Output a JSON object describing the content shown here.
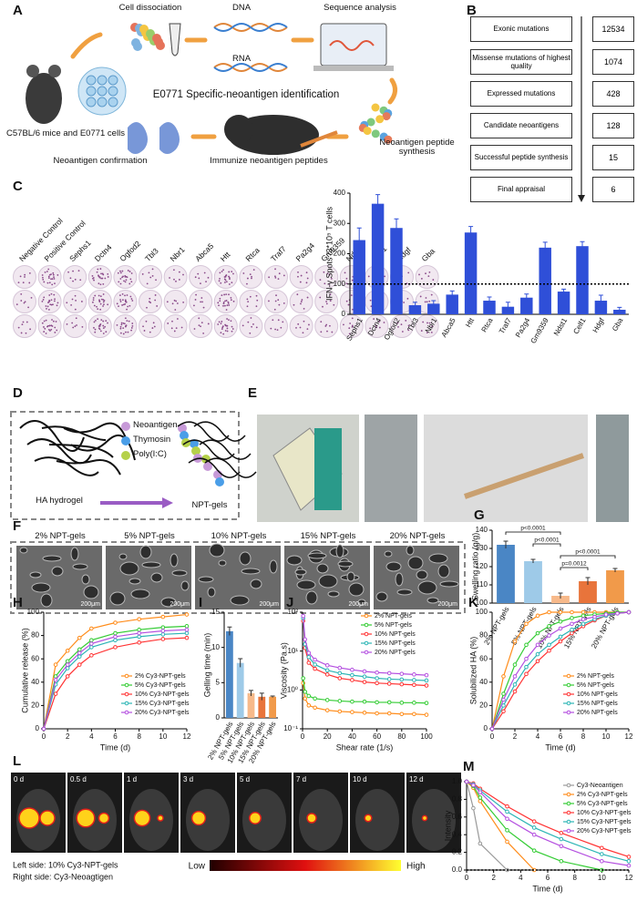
{
  "panel_letters": [
    "A",
    "B",
    "C",
    "D",
    "E",
    "F",
    "G",
    "H",
    "I",
    "J",
    "K",
    "L",
    "M"
  ],
  "panel_a": {
    "labels": [
      "Cell dissociation",
      "DNA",
      "RNA",
      "Sequence analysis",
      "E0771 Specific-neoantigen identification",
      "C57BL/6 mice and E0771 cells",
      "Neoantigen peptide synthesis",
      "Immunize neoantigen peptides",
      "Neoantigen confirmation"
    ]
  },
  "panel_b": {
    "steps": [
      {
        "label": "Exonic mutations",
        "count": 12534
      },
      {
        "label": "Missense mutations of highest quality",
        "count": 1074
      },
      {
        "label": "Expressed mutations",
        "count": 428
      },
      {
        "label": "Candidate neoantigens",
        "count": 128
      },
      {
        "label": "Successful peptide synthesis",
        "count": 15
      },
      {
        "label": "Final appraisal",
        "count": 6
      }
    ]
  },
  "panel_c": {
    "well_labels": [
      "Negative Control",
      "Positive Control",
      "Sephs1",
      "Dctn4",
      "Ogfod2",
      "Tbl3",
      "Nbr1",
      "Abca5",
      "Htt",
      "Rtca",
      "Traf7",
      "Pa2g4",
      "Gm9359",
      "Ndst1",
      "Celf1",
      "Hdgf",
      "Gba"
    ]
  },
  "panel_d": {
    "legend": [
      "Neoantigen",
      "Thymosin",
      "Poly(I:C)"
    ],
    "left": "HA hydrogel",
    "right": "NPT-gels"
  },
  "panel_f": {
    "labels": [
      "2% NPT-gels",
      "5% NPT-gels",
      "10% NPT-gels",
      "15% NPT-gels",
      "20% NPT-gels"
    ],
    "scale": "200μm"
  },
  "panel_l": {
    "times": [
      "0 d",
      "0.5 d",
      "1 d",
      "3 d",
      "5 d",
      "7 d",
      "10 d",
      "12 d"
    ],
    "notes": [
      "Left side: 10% Cy3-NPT-gels",
      "Right side: Cy3-Neoagtigen"
    ],
    "low": "Low",
    "high": "High"
  },
  "chart_data": [
    {
      "type": "bar",
      "ylabel": "IFN-γ Spots /3*10⁵ T cells",
      "categories": [
        "Sephs1",
        "Dctn4",
        "Ogfod2",
        "Tbl3",
        "Nbr1",
        "Abca5",
        "Htt",
        "Rtca",
        "Traf7",
        "Pa2g4",
        "Gm9359",
        "Ndst1",
        "Celf1",
        "Hdgf",
        "Gba"
      ],
      "values": [
        245,
        365,
        285,
        30,
        35,
        65,
        270,
        45,
        25,
        55,
        220,
        75,
        225,
        45,
        15
      ],
      "errors": [
        40,
        30,
        30,
        10,
        10,
        12,
        20,
        12,
        15,
        12,
        18,
        8,
        15,
        18,
        8
      ],
      "color": "#2f4fd8",
      "ylim": [
        0,
        400
      ],
      "yticks": [
        0,
        100,
        200,
        300,
        400
      ],
      "ref_line": 100
    },
    {
      "type": "bar",
      "ylabel": "Swelling ratio (g/g)",
      "categories": [
        "2% NPT-gels",
        "5% NPT-gels",
        "10% NPT-gels",
        "15% NPT-gels",
        "20% NPT-gels"
      ],
      "values": [
        132,
        123,
        104,
        112,
        118
      ],
      "errors": [
        2,
        1,
        1.5,
        2,
        1
      ],
      "colors": [
        "#4a86c5",
        "#9ecae8",
        "#f7b98a",
        "#e8743b",
        "#f19a4a"
      ],
      "ylim": [
        100,
        140
      ],
      "yticks": [
        100,
        110,
        120,
        130,
        140
      ],
      "annotations": [
        {
          "text": "p<0.0001",
          "between": [
            "2% NPT-gels",
            "10% NPT-gels"
          ]
        },
        {
          "text": "p<0.0001",
          "between": [
            "5% NPT-gels",
            "10% NPT-gels"
          ]
        },
        {
          "text": "p<0.0001",
          "between": [
            "10% NPT-gels",
            "20% NPT-gels"
          ]
        },
        {
          "text": "p=0.0012",
          "between": [
            "10% NPT-gels",
            "15% NPT-gels"
          ]
        }
      ]
    },
    {
      "type": "line",
      "xlabel": "Time (d)",
      "ylabel": "Cumulative release (%)",
      "x": [
        0,
        1,
        2,
        3,
        4,
        6,
        8,
        10,
        12
      ],
      "xlim": [
        0,
        12
      ],
      "xticks": [
        0,
        2,
        4,
        6,
        8,
        10,
        12
      ],
      "ylim": [
        0,
        100
      ],
      "yticks": [
        0,
        20,
        40,
        60,
        80,
        100
      ],
      "legend": "lower right",
      "series": [
        {
          "name": "2% Cy3-NPT-gels",
          "color": "#ff8c1a",
          "values": [
            0,
            55,
            67,
            78,
            86,
            91,
            94,
            96,
            98
          ]
        },
        {
          "name": "5% Cy3-NPT-gels",
          "color": "#33cc33",
          "values": [
            0,
            45,
            58,
            68,
            76,
            82,
            85,
            87,
            88
          ]
        },
        {
          "name": "10% Cy3-NPT-gels",
          "color": "#ff3333",
          "values": [
            0,
            30,
            45,
            55,
            63,
            70,
            74,
            77,
            78
          ]
        },
        {
          "name": "15% Cy3-NPT-gels",
          "color": "#2bb5b5",
          "values": [
            0,
            38,
            52,
            62,
            70,
            76,
            79,
            81,
            82
          ]
        },
        {
          "name": "20% Cy3-NPT-gels",
          "color": "#b44fe0",
          "values": [
            0,
            42,
            55,
            65,
            73,
            79,
            82,
            84,
            85
          ]
        }
      ]
    },
    {
      "type": "bar",
      "ylabel": "Gelling time (min)",
      "categories": [
        "2% NPT-gels",
        "5% NPT-gels",
        "10% NPT-gels",
        "15% NPT-gels",
        "20% NPT-gels"
      ],
      "values": [
        12.3,
        7.8,
        3.5,
        3.0,
        3.0
      ],
      "errors": [
        0.6,
        0.6,
        0.4,
        0.5,
        0.1
      ],
      "colors": [
        "#4a86c5",
        "#9ecae8",
        "#f7b98a",
        "#e8743b",
        "#f19a4a"
      ],
      "ylim": [
        0,
        15
      ],
      "yticks": [
        0,
        5,
        10,
        15
      ]
    },
    {
      "type": "line",
      "xlabel": "Shear rate (1/s)",
      "ylabel": "Viscosity (Pa.s)",
      "log_y": true,
      "x": [
        0.5,
        2,
        5,
        10,
        20,
        30,
        40,
        50,
        60,
        70,
        80,
        90,
        100
      ],
      "xlim": [
        0,
        100
      ],
      "xticks": [
        0,
        20,
        40,
        60,
        80,
        100
      ],
      "ylim": [
        0.1,
        100
      ],
      "yticks": [
        {
          "value": 0.1,
          "label": "10⁻¹"
        },
        {
          "value": 1,
          "label": "10⁰"
        },
        {
          "value": 10,
          "label": "10¹"
        },
        {
          "value": 100,
          "label": "10²"
        }
      ],
      "legend": "upper right",
      "series": [
        {
          "name": "2% NPT-gels",
          "color": "#ff8c1a",
          "values": [
            1.5,
            0.6,
            0.4,
            0.35,
            0.3,
            0.28,
            0.27,
            0.26,
            0.25,
            0.25,
            0.24,
            0.24,
            0.23
          ]
        },
        {
          "name": "5% NPT-gels",
          "color": "#33cc33",
          "values": [
            2,
            0.9,
            0.7,
            0.6,
            0.55,
            0.52,
            0.5,
            0.5,
            0.48,
            0.48,
            0.47,
            0.47,
            0.46
          ]
        },
        {
          "name": "10% NPT-gels",
          "color": "#ff3333",
          "values": [
            60,
            12,
            5,
            3.5,
            2.5,
            2,
            1.8,
            1.6,
            1.5,
            1.45,
            1.4,
            1.35,
            1.3
          ]
        },
        {
          "name": "15% NPT-gels",
          "color": "#2bb5b5",
          "values": [
            70,
            15,
            7,
            4.5,
            3.2,
            2.7,
            2.4,
            2.2,
            2.0,
            1.9,
            1.85,
            1.8,
            1.75
          ]
        },
        {
          "name": "20% NPT-gels",
          "color": "#b44fe0",
          "values": [
            80,
            20,
            9,
            6,
            4.3,
            3.7,
            3.3,
            3.0,
            2.8,
            2.7,
            2.6,
            2.5,
            2.4
          ]
        }
      ]
    },
    {
      "type": "line",
      "xlabel": "Time (d)",
      "ylabel": "Solubilized HA (%)",
      "x": [
        0,
        1,
        2,
        3,
        4,
        5,
        6,
        7,
        8,
        9,
        10,
        11,
        12
      ],
      "xlim": [
        0,
        12
      ],
      "xticks": [
        0,
        2,
        4,
        6,
        8,
        10,
        12
      ],
      "ylim": [
        0,
        100
      ],
      "yticks": [
        0,
        20,
        40,
        60,
        80,
        100
      ],
      "legend": "lower right",
      "series": [
        {
          "name": "2% NPT-gels",
          "color": "#ff8c1a",
          "values": [
            0,
            45,
            75,
            90,
            97,
            100,
            100,
            100,
            100,
            100,
            100,
            100,
            100
          ]
        },
        {
          "name": "5% NPT-gels",
          "color": "#33cc33",
          "values": [
            0,
            30,
            55,
            72,
            82,
            88,
            92,
            95,
            97,
            98,
            99,
            100,
            100
          ]
        },
        {
          "name": "10% NPT-gels",
          "color": "#ff3333",
          "values": [
            0,
            15,
            32,
            47,
            58,
            67,
            75,
            82,
            88,
            93,
            97,
            99,
            100
          ]
        },
        {
          "name": "15% NPT-gels",
          "color": "#2bb5b5",
          "values": [
            0,
            20,
            38,
            53,
            64,
            72,
            79,
            85,
            90,
            94,
            97,
            99,
            100
          ]
        },
        {
          "name": "20% NPT-gels",
          "color": "#b44fe0",
          "values": [
            0,
            25,
            45,
            60,
            72,
            80,
            86,
            90,
            94,
            96,
            98,
            99,
            100
          ]
        }
      ]
    },
    {
      "type": "line",
      "xlabel": "Time (d)",
      "ylabel": "Intensity",
      "x": [
        0,
        0.5,
        1,
        3,
        5,
        7,
        10,
        12
      ],
      "xlim": [
        0,
        12
      ],
      "xticks": [
        0,
        2,
        4,
        6,
        8,
        10,
        12
      ],
      "ylim": [
        0,
        1
      ],
      "yticks": [
        {
          "value": 0,
          "label": "0.0"
        },
        0.2,
        0.4,
        0.6,
        0.8,
        {
          "value": 1,
          "label": "1.0"
        }
      ],
      "legend": "upper right",
      "ref_line": 0,
      "series": [
        {
          "name": "Cy3-Neoantigen",
          "color": "#999999",
          "values": [
            1.0,
            0.7,
            0.3,
            0.0,
            null,
            null,
            null,
            null
          ]
        },
        {
          "name": "2% Cy3-NPT-gels",
          "color": "#ff8c1a",
          "values": [
            1.0,
            0.93,
            0.78,
            0.32,
            0.0,
            null,
            null,
            null
          ]
        },
        {
          "name": "5% Cy3-NPT-gels",
          "color": "#33cc33",
          "values": [
            1.0,
            0.95,
            0.82,
            0.45,
            0.22,
            0.1,
            0.0,
            null
          ]
        },
        {
          "name": "10% Cy3-NPT-gels",
          "color": "#ff3333",
          "values": [
            1.0,
            0.98,
            0.92,
            0.72,
            0.55,
            0.42,
            0.25,
            0.15
          ]
        },
        {
          "name": "15% Cy3-NPT-gels",
          "color": "#2bb5b5",
          "values": [
            1.0,
            0.97,
            0.9,
            0.66,
            0.48,
            0.35,
            0.18,
            0.1
          ]
        },
        {
          "name": "20% Cy3-NPT-gels",
          "color": "#b44fe0",
          "values": [
            1.0,
            0.96,
            0.88,
            0.58,
            0.4,
            0.27,
            0.1,
            0.05
          ]
        }
      ]
    }
  ]
}
